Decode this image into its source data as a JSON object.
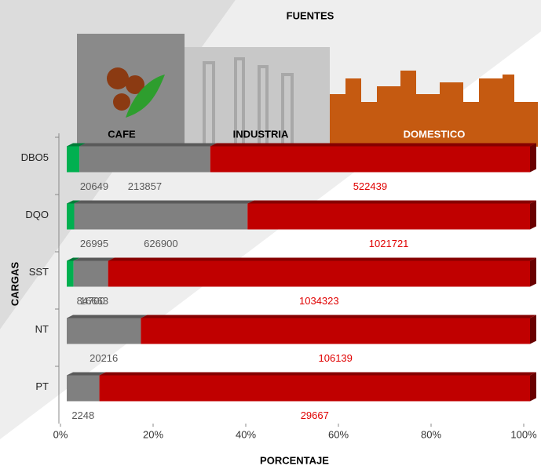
{
  "chart_data": {
    "type": "stacked-bar-100",
    "title": "FUENTES",
    "x_label": "PORCENTAJE",
    "y_label": "CARGAS",
    "categories": [
      "DBO5",
      "DQO",
      "SST",
      "NT",
      "PT"
    ],
    "series": [
      {
        "name": "CAFE",
        "color": "#00b050",
        "label_color": "#595959",
        "values": [
          20649,
          26995,
          16663,
          null,
          null
        ]
      },
      {
        "name": "INDUSTRIA",
        "color": "#808080",
        "label_color": "#595959",
        "values": [
          213857,
          626900,
          84700,
          20216,
          2248
        ]
      },
      {
        "name": "DOMESTICO",
        "color": "#c00000",
        "label_color": "#e00000",
        "values": [
          522439,
          1021721,
          1034323,
          106139,
          29667
        ]
      }
    ],
    "xlim": [
      0,
      100
    ],
    "xticks": [
      {
        "value": 0,
        "label": "0%"
      },
      {
        "value": 20,
        "label": "20%"
      },
      {
        "value": 40,
        "label": "40%"
      },
      {
        "value": 60,
        "label": "60%"
      },
      {
        "value": 80,
        "label": "80%"
      },
      {
        "value": 100,
        "label": "100%"
      }
    ]
  }
}
